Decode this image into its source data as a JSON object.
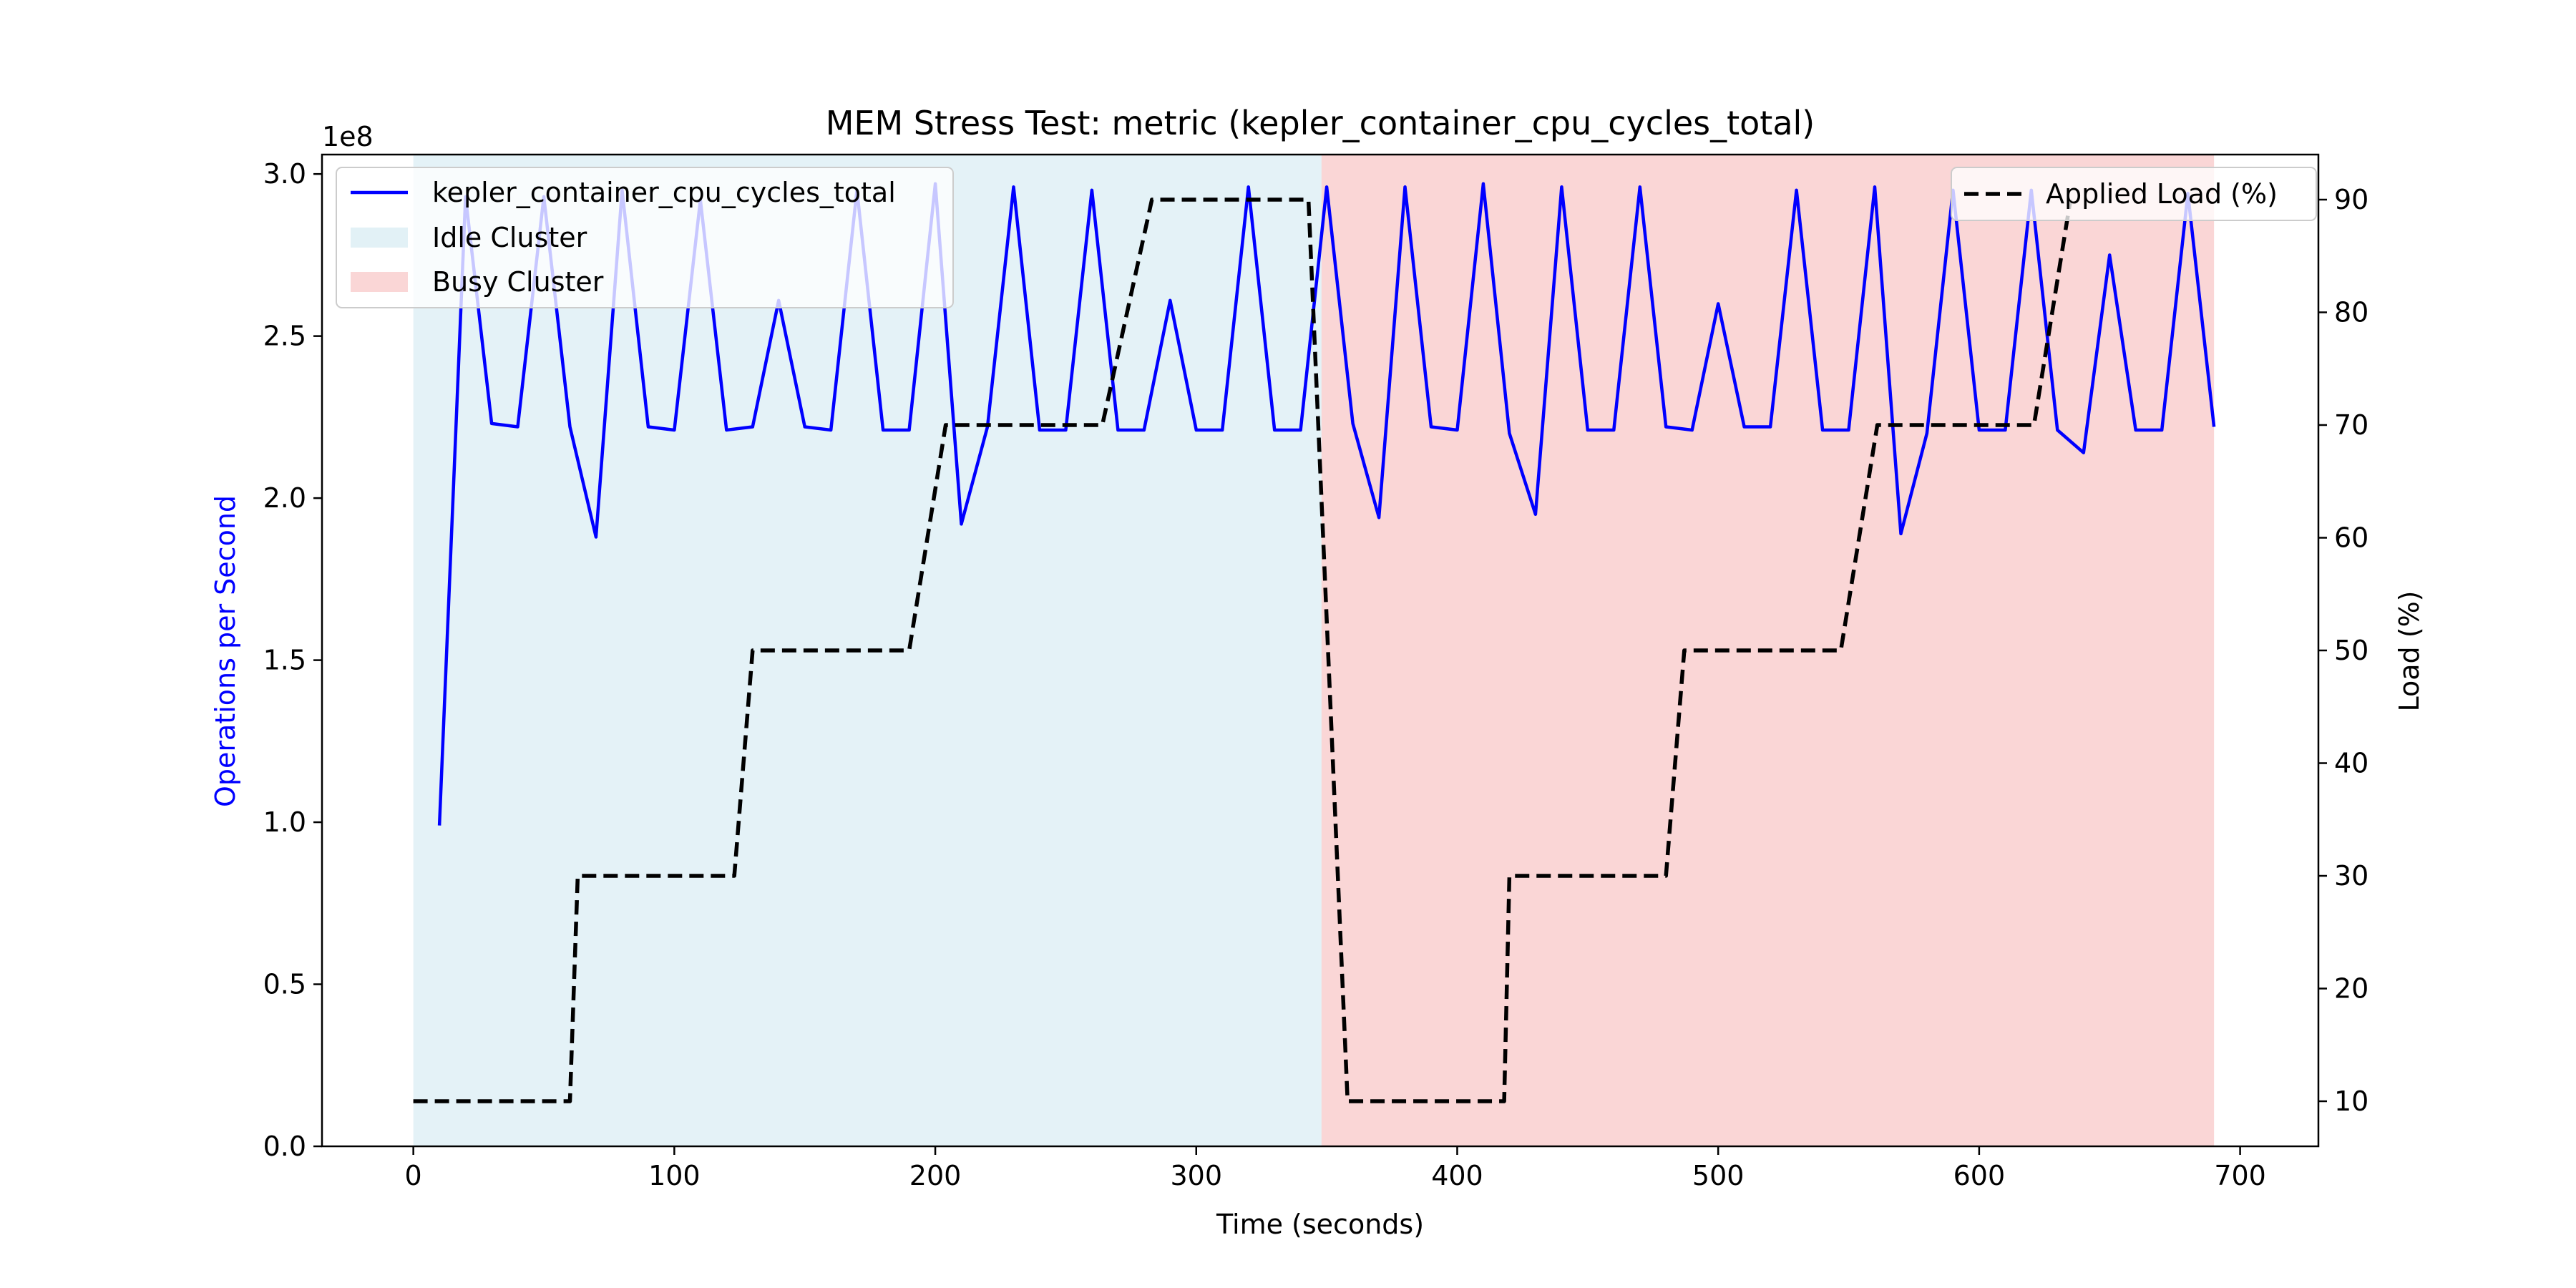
{
  "chart_data": {
    "type": "line",
    "title": "MEM Stress Test: metric (kepler_container_cpu_cycles_total)",
    "xlabel": "Time (seconds)",
    "ylabel": "Operations per Second",
    "y2label": "Load (%)",
    "y_offset_label": "1e8",
    "xlim": [
      -35,
      730
    ],
    "ylim": [
      0,
      3.06
    ],
    "y2lim": [
      6,
      94
    ],
    "x_ticks": [
      0,
      100,
      200,
      300,
      400,
      500,
      600,
      700
    ],
    "y_ticks": [
      0.0,
      0.5,
      1.0,
      1.5,
      2.0,
      2.5,
      3.0
    ],
    "y2_ticks": [
      10,
      20,
      30,
      40,
      50,
      60,
      70,
      80,
      90
    ],
    "regions": [
      {
        "name": "Idle Cluster",
        "x_start": 0,
        "x_end": 348,
        "color": "#add8e6"
      },
      {
        "name": "Busy Cluster",
        "x_start": 348,
        "x_end": 690,
        "color": "#f08080"
      }
    ],
    "series": [
      {
        "name": "kepler_container_cpu_cycles_total",
        "axis": "left",
        "color": "#0000ff",
        "style": "solid",
        "x": [
          10,
          20,
          30,
          40,
          50,
          60,
          70,
          80,
          90,
          100,
          110,
          120,
          130,
          140,
          150,
          160,
          170,
          180,
          190,
          200,
          210,
          220,
          230,
          240,
          250,
          260,
          270,
          280,
          290,
          300,
          310,
          320,
          330,
          340,
          350,
          360,
          370,
          380,
          390,
          400,
          410,
          420,
          430,
          440,
          450,
          460,
          470,
          480,
          490,
          500,
          510,
          520,
          530,
          540,
          550,
          560,
          570,
          580,
          590,
          600,
          610,
          620,
          630,
          640,
          650,
          660,
          670,
          680,
          690
        ],
        "y": [
          0.99,
          2.93,
          2.23,
          2.22,
          2.93,
          2.22,
          1.88,
          2.95,
          2.22,
          2.21,
          2.92,
          2.21,
          2.22,
          2.61,
          2.22,
          2.21,
          2.95,
          2.21,
          2.21,
          2.97,
          1.92,
          2.22,
          2.96,
          2.21,
          2.21,
          2.95,
          2.21,
          2.21,
          2.61,
          2.21,
          2.21,
          2.96,
          2.21,
          2.21,
          2.96,
          2.23,
          1.94,
          2.96,
          2.22,
          2.21,
          2.97,
          2.2,
          1.95,
          2.96,
          2.21,
          2.21,
          2.96,
          2.22,
          2.21,
          2.6,
          2.22,
          2.22,
          2.95,
          2.21,
          2.21,
          2.96,
          1.89,
          2.2,
          2.95,
          2.21,
          2.21,
          2.95,
          2.21,
          2.14,
          2.75,
          2.21,
          2.21,
          2.94,
          2.22
        ]
      },
      {
        "name": "Applied Load (%)",
        "axis": "right",
        "color": "#000000",
        "style": "dashed",
        "x": [
          0,
          60,
          63,
          123,
          130,
          190,
          204,
          264,
          283,
          343,
          358,
          418,
          420,
          480,
          487,
          547,
          561,
          621,
          635
        ],
        "y": [
          10,
          10,
          30,
          30,
          50,
          50,
          70,
          70,
          90,
          90,
          10,
          10,
          30,
          30,
          50,
          50,
          70,
          70,
          90
        ]
      }
    ],
    "legends": {
      "left": {
        "placement": "upper left",
        "entries": [
          "kepler_container_cpu_cycles_total",
          "Idle Cluster",
          "Busy Cluster"
        ]
      },
      "right": {
        "placement": "upper right",
        "entries": [
          "Applied Load (%)"
        ]
      }
    },
    "grid": false
  }
}
